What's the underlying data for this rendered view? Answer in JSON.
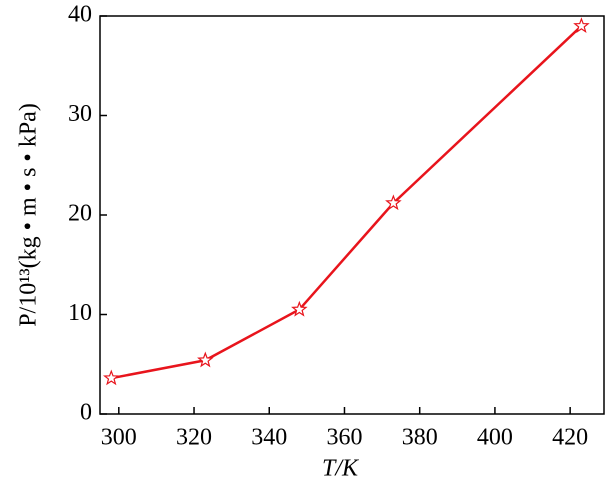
{
  "chart_data": {
    "type": "line",
    "x": [
      298,
      323,
      348,
      373,
      423
    ],
    "series": [
      {
        "name": "P",
        "color": "#e8141c",
        "values": [
          3.6,
          5.4,
          10.5,
          21.2,
          39.0
        ]
      }
    ],
    "xlabel": "T/K",
    "ylabel": "P/10¹³(kg • m • s • kPa)",
    "xlim": [
      295,
      429
    ],
    "xticks": [
      300,
      320,
      340,
      360,
      380,
      400,
      420
    ],
    "ylim": [
      0,
      40
    ],
    "yticks": [
      0,
      10,
      20,
      30,
      40
    ]
  }
}
